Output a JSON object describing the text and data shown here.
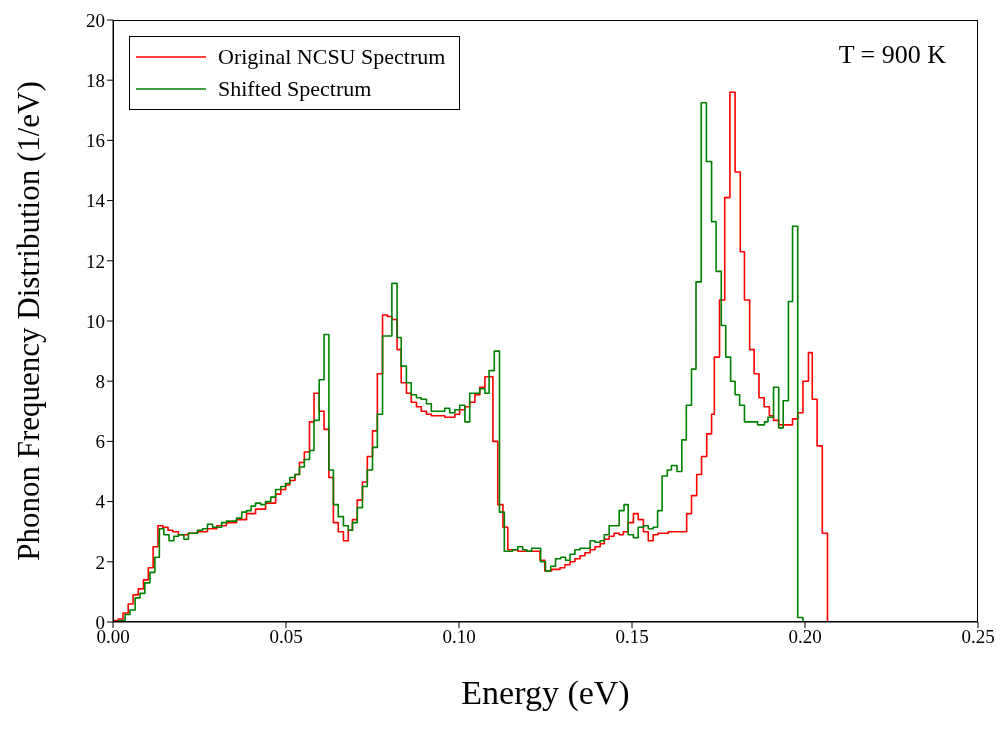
{
  "chart_data": {
    "type": "step",
    "xlabel": "Energy (eV)",
    "ylabel": "Phonon Frequency Distribution (1/eV)",
    "annotations": [
      "T = 900 K"
    ],
    "xlim": [
      0,
      0.25
    ],
    "xticks": [
      {
        "value": 0,
        "label": "0.00"
      },
      {
        "value": 0.05,
        "label": "0.05"
      },
      {
        "value": 0.1,
        "label": "0.10"
      },
      {
        "value": 0.15,
        "label": "0.15"
      },
      {
        "value": 0.2,
        "label": "0.20"
      },
      {
        "value": 0.25,
        "label": "0.25"
      }
    ],
    "ylim": [
      0,
      20
    ],
    "yticks": [
      0,
      2,
      4,
      6,
      8,
      10,
      12,
      14,
      16,
      18,
      20
    ],
    "legend": "top left",
    "series": [
      {
        "name": "Original NCSU Spectrum",
        "color": "#ff0000",
        "x": [
          0,
          0.0015,
          0.0029,
          0.0044,
          0.0058,
          0.0073,
          0.0088,
          0.0102,
          0.0116,
          0.013,
          0.0144,
          0.0159,
          0.0173,
          0.0189,
          0.0218,
          0.0244,
          0.0273,
          0.03,
          0.0328,
          0.0357,
          0.0386,
          0.0412,
          0.0441,
          0.047,
          0.0485,
          0.0499,
          0.0511,
          0.0526,
          0.0539,
          0.0553,
          0.0568,
          0.0581,
          0.0596,
          0.061,
          0.0624,
          0.0637,
          0.0651,
          0.0666,
          0.068,
          0.0692,
          0.0706,
          0.0721,
          0.0735,
          0.075,
          0.0764,
          0.0779,
          0.0793,
          0.0806,
          0.0821,
          0.0833,
          0.0848,
          0.0862,
          0.0877,
          0.0891,
          0.0906,
          0.092,
          0.0959,
          0.0988,
          0.1002,
          0.1017,
          0.1031,
          0.1046,
          0.106,
          0.1075,
          0.1098,
          0.1112,
          0.1127,
          0.1141,
          0.117,
          0.1234,
          0.1248,
          0.1268,
          0.1292,
          0.1306,
          0.1321,
          0.1335,
          0.135,
          0.1364,
          0.1379,
          0.1393,
          0.1408,
          0.142,
          0.1434,
          0.1448,
          0.1463,
          0.1475,
          0.1489,
          0.1504,
          0.1518,
          0.1533,
          0.1547,
          0.1561,
          0.1575,
          0.1605,
          0.1658,
          0.1672,
          0.1687,
          0.1701,
          0.1716,
          0.173,
          0.1738,
          0.1753,
          0.1768,
          0.1783,
          0.1798,
          0.1813,
          0.1825,
          0.184,
          0.1853,
          0.1867,
          0.1882,
          0.1897,
          0.1909,
          0.1924,
          0.1964,
          0.1979,
          0.1994,
          0.201,
          0.2021,
          0.2035,
          0.205,
          0.2065,
          0.208
        ],
        "values": [
          0.05,
          0.1,
          0.3,
          0.6,
          0.9,
          1.1,
          1.4,
          1.8,
          2.5,
          3.2,
          3.15,
          3.05,
          3.0,
          2.9,
          2.95,
          3.0,
          3.1,
          3.2,
          3.3,
          3.4,
          3.6,
          3.75,
          3.95,
          4.25,
          4.4,
          4.55,
          4.7,
          4.9,
          5.3,
          5.65,
          6.65,
          7.6,
          7.0,
          6.4,
          4.8,
          3.3,
          3.0,
          2.7,
          3.05,
          3.4,
          4.05,
          4.65,
          5.5,
          6.35,
          8.25,
          10.2,
          10.15,
          10.05,
          9.05,
          7.95,
          7.6,
          7.3,
          7.15,
          7.0,
          6.9,
          6.85,
          6.8,
          6.9,
          7.05,
          7.15,
          7.3,
          7.55,
          7.8,
          8.15,
          6.0,
          3.9,
          3.15,
          2.4,
          2.35,
          2.05,
          1.7,
          1.75,
          1.8,
          1.9,
          2.0,
          2.1,
          2.2,
          2.3,
          2.4,
          2.5,
          2.6,
          2.75,
          2.85,
          2.95,
          2.9,
          3.0,
          3.3,
          3.6,
          3.4,
          3.0,
          2.7,
          2.9,
          2.95,
          3.0,
          3.6,
          4.2,
          4.9,
          5.5,
          6.25,
          6.9,
          8.8,
          10.7,
          14.1,
          17.6,
          14.95,
          12.3,
          10.7,
          9.05,
          8.25,
          7.45,
          7.15,
          6.85,
          6.7,
          6.55,
          6.75,
          6.95,
          8.0,
          8.95,
          7.4,
          5.85,
          2.95,
          0,
          0
        ]
      },
      {
        "name": "Shifted Spectrum",
        "color": "#008000",
        "x": [
          0,
          0.0015,
          0.0035,
          0.0049,
          0.0064,
          0.0078,
          0.0092,
          0.0107,
          0.0121,
          0.0134,
          0.0147,
          0.0162,
          0.0176,
          0.0189,
          0.0205,
          0.0218,
          0.0244,
          0.0259,
          0.0273,
          0.0288,
          0.0314,
          0.0328,
          0.0357,
          0.0372,
          0.0386,
          0.0399,
          0.0412,
          0.0427,
          0.0441,
          0.0456,
          0.047,
          0.0485,
          0.0499,
          0.0511,
          0.0526,
          0.0539,
          0.0553,
          0.0568,
          0.0581,
          0.0596,
          0.061,
          0.0624,
          0.0637,
          0.0651,
          0.0666,
          0.068,
          0.0692,
          0.0706,
          0.0721,
          0.0735,
          0.075,
          0.0764,
          0.0779,
          0.0806,
          0.0821,
          0.0833,
          0.0848,
          0.0862,
          0.0877,
          0.0891,
          0.0906,
          0.092,
          0.0959,
          0.0973,
          0.0988,
          0.1002,
          0.1017,
          0.1031,
          0.106,
          0.1075,
          0.1087,
          0.1102,
          0.1117,
          0.1131,
          0.1155,
          0.117,
          0.1184,
          0.1196,
          0.121,
          0.1236,
          0.125,
          0.1265,
          0.1279,
          0.1294,
          0.1308,
          0.1321,
          0.1335,
          0.135,
          0.1379,
          0.1393,
          0.1408,
          0.142,
          0.1434,
          0.1463,
          0.1477,
          0.1489,
          0.1504,
          0.1518,
          0.1533,
          0.1547,
          0.1561,
          0.1574,
          0.1587,
          0.1602,
          0.1614,
          0.163,
          0.1644,
          0.1657,
          0.1672,
          0.1685,
          0.17,
          0.1715,
          0.173,
          0.1743,
          0.1758,
          0.1771,
          0.1785,
          0.1798,
          0.1811,
          0.1825,
          0.1863,
          0.1883,
          0.1893,
          0.1909,
          0.1924,
          0.1937,
          0.1952,
          0.1964,
          0.1979,
          0.1994,
          0.208
        ],
        "values": [
          0,
          0.05,
          0.25,
          0.4,
          0.8,
          0.95,
          1.3,
          1.65,
          2.15,
          3.1,
          2.9,
          2.7,
          2.85,
          2.9,
          2.75,
          2.95,
          3.05,
          3.1,
          3.25,
          3.15,
          3.3,
          3.35,
          3.45,
          3.65,
          3.7,
          3.85,
          3.95,
          3.9,
          4.0,
          4.15,
          4.4,
          4.5,
          4.6,
          4.8,
          4.9,
          5.15,
          5.4,
          5.7,
          6.7,
          8.05,
          9.55,
          5.05,
          3.9,
          3.5,
          3.2,
          3.05,
          3.3,
          3.8,
          4.5,
          5.05,
          5.8,
          6.9,
          9.5,
          11.25,
          9.45,
          8.5,
          7.95,
          7.55,
          7.45,
          7.4,
          7.25,
          7.0,
          7.1,
          6.95,
          7.05,
          7.2,
          6.65,
          7.6,
          7.75,
          7.6,
          8.35,
          9.0,
          3.65,
          2.35,
          2.4,
          2.5,
          2.4,
          2.35,
          2.45,
          2.0,
          1.7,
          1.85,
          2.1,
          2.15,
          2.05,
          2.25,
          2.4,
          2.45,
          2.7,
          2.65,
          2.7,
          2.9,
          3.2,
          3.7,
          3.9,
          2.9,
          2.8,
          3.15,
          3.2,
          3.1,
          3.15,
          3.7,
          4.85,
          5.05,
          5.2,
          5.0,
          6.05,
          7.2,
          8.4,
          11.3,
          17.25,
          15.3,
          13.3,
          11.65,
          9.85,
          8.8,
          8.0,
          7.55,
          7.2,
          6.65,
          6.55,
          6.65,
          6.8,
          7.8,
          6.45,
          7.35,
          10.65,
          13.15,
          0.15,
          0,
          0
        ]
      }
    ]
  }
}
